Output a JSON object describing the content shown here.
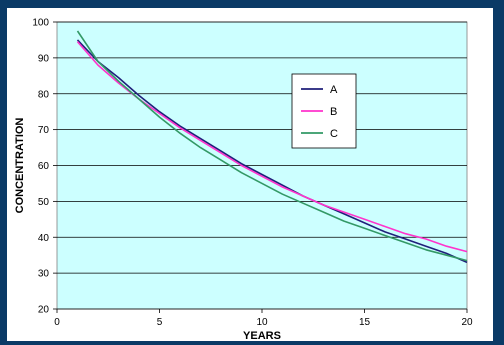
{
  "chart_data": {
    "type": "line",
    "title": "",
    "xlabel": "YEARS",
    "ylabel": "CONCENTRATION",
    "xlim": [
      0,
      20
    ],
    "ylim": [
      20,
      100
    ],
    "x_ticks": [
      0,
      5,
      10,
      15,
      20
    ],
    "y_ticks": [
      20,
      30,
      40,
      50,
      60,
      70,
      80,
      90,
      100
    ],
    "grid": "horizontal",
    "legend_position": "center-right",
    "plot_background": "#ccffff",
    "series": [
      {
        "name": "A",
        "color": "#1f1f7a",
        "x": [
          1,
          2,
          3,
          4,
          5,
          6,
          7,
          8,
          9,
          10,
          11,
          12,
          13,
          14,
          15,
          16,
          17,
          18,
          19,
          20
        ],
        "y": [
          95,
          89,
          84.5,
          79.5,
          75,
          71,
          67.5,
          64,
          60.5,
          57.5,
          54.5,
          51.5,
          49,
          46.5,
          44,
          41.5,
          39.5,
          37.5,
          35.5,
          33
        ]
      },
      {
        "name": "B",
        "color": "#ff33cc",
        "x": [
          1,
          2,
          3,
          4,
          5,
          6,
          7,
          8,
          9,
          10,
          11,
          12,
          13,
          14,
          15,
          16,
          17,
          18,
          19,
          20
        ],
        "y": [
          94.5,
          88,
          83,
          78.5,
          74.5,
          70.5,
          67,
          63.5,
          60,
          57,
          54,
          51.5,
          49,
          47,
          45,
          43,
          41,
          39.5,
          37.5,
          36
        ]
      },
      {
        "name": "C",
        "color": "#339966",
        "x": [
          1,
          2,
          3,
          4,
          5,
          6,
          7,
          8,
          9,
          10,
          11,
          12,
          13,
          14,
          15,
          16,
          17,
          18,
          19,
          20
        ],
        "y": [
          97.5,
          89,
          83.5,
          78.5,
          73.5,
          69,
          65,
          61.5,
          58,
          55,
          52,
          49.5,
          47,
          44.5,
          42.5,
          40.5,
          38.5,
          36.5,
          35,
          33.5
        ]
      }
    ]
  }
}
